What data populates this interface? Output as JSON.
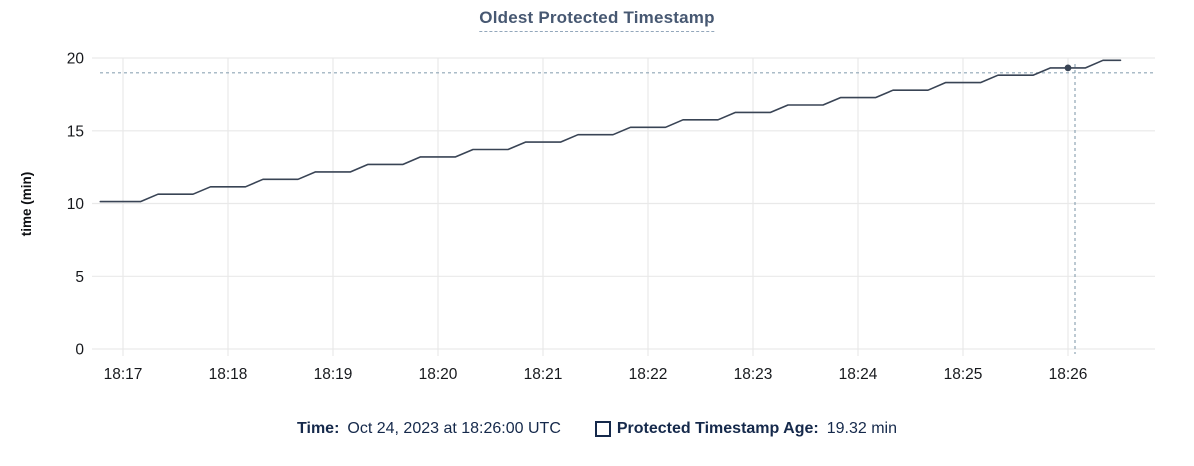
{
  "header": {
    "title": "Oldest Protected Timestamp"
  },
  "legend": {
    "time_label": "Time:",
    "time_value": "Oct 24, 2023 at 18:26:00 UTC",
    "series_marker": "outlined-square",
    "series_label": "Protected Timestamp Age:",
    "series_value": "19.32 min"
  },
  "colors": {
    "line": "#394455",
    "crosshair": "#8fa5b5",
    "grid": "#e9e9e9",
    "axis_text": "#17191d",
    "title": "#475872",
    "title_underline": "#93a7bb",
    "legend_text": "#15294b",
    "background": "#ffffff"
  },
  "chart_data": {
    "type": "line",
    "title": "Oldest Protected Timestamp",
    "xlabel": "",
    "ylabel": "time (min)",
    "grid": true,
    "legend_position": "bottom-center",
    "ylim": [
      0,
      20
    ],
    "y_ticks": [
      0,
      5,
      10,
      15,
      20
    ],
    "x_tick_labels": [
      "18:17",
      "18:18",
      "18:19",
      "18:20",
      "18:21",
      "18:22",
      "18:23",
      "18:24",
      "18:25",
      "18:26"
    ],
    "x_tick_seconds": [
      0,
      60,
      120,
      180,
      240,
      300,
      360,
      420,
      480,
      540
    ],
    "xlim_seconds": [
      -18,
      590
    ],
    "x_reference_time": "18:17:00",
    "series": [
      {
        "name": "Protected Timestamp Age",
        "unit": "min",
        "points_t_seconds": [
          -13,
          10,
          20,
          40,
          50,
          70,
          80,
          100,
          110,
          130,
          140,
          160,
          170,
          190,
          200,
          220,
          230,
          250,
          260,
          280,
          290,
          310,
          320,
          340,
          350,
          370,
          380,
          400,
          410,
          430,
          440,
          460,
          470,
          490,
          500,
          520,
          530,
          550,
          560,
          570
        ],
        "points_values": [
          10.13,
          10.13,
          10.64,
          10.64,
          11.15,
          11.15,
          11.66,
          11.66,
          12.17,
          12.17,
          12.69,
          12.69,
          13.2,
          13.2,
          13.71,
          13.71,
          14.22,
          14.22,
          14.73,
          14.73,
          15.24,
          15.24,
          15.75,
          15.75,
          16.26,
          16.26,
          16.77,
          16.77,
          17.28,
          17.28,
          17.79,
          17.79,
          18.31,
          18.31,
          18.82,
          18.82,
          19.32,
          19.32,
          19.84,
          19.84
        ]
      }
    ],
    "hover": {
      "time_label": "Oct 24, 2023 at 18:26:00 UTC",
      "point_t_seconds": 540,
      "point_value": 19.32,
      "crosshair_t_seconds": 544,
      "crosshair_value": 18.98
    }
  }
}
